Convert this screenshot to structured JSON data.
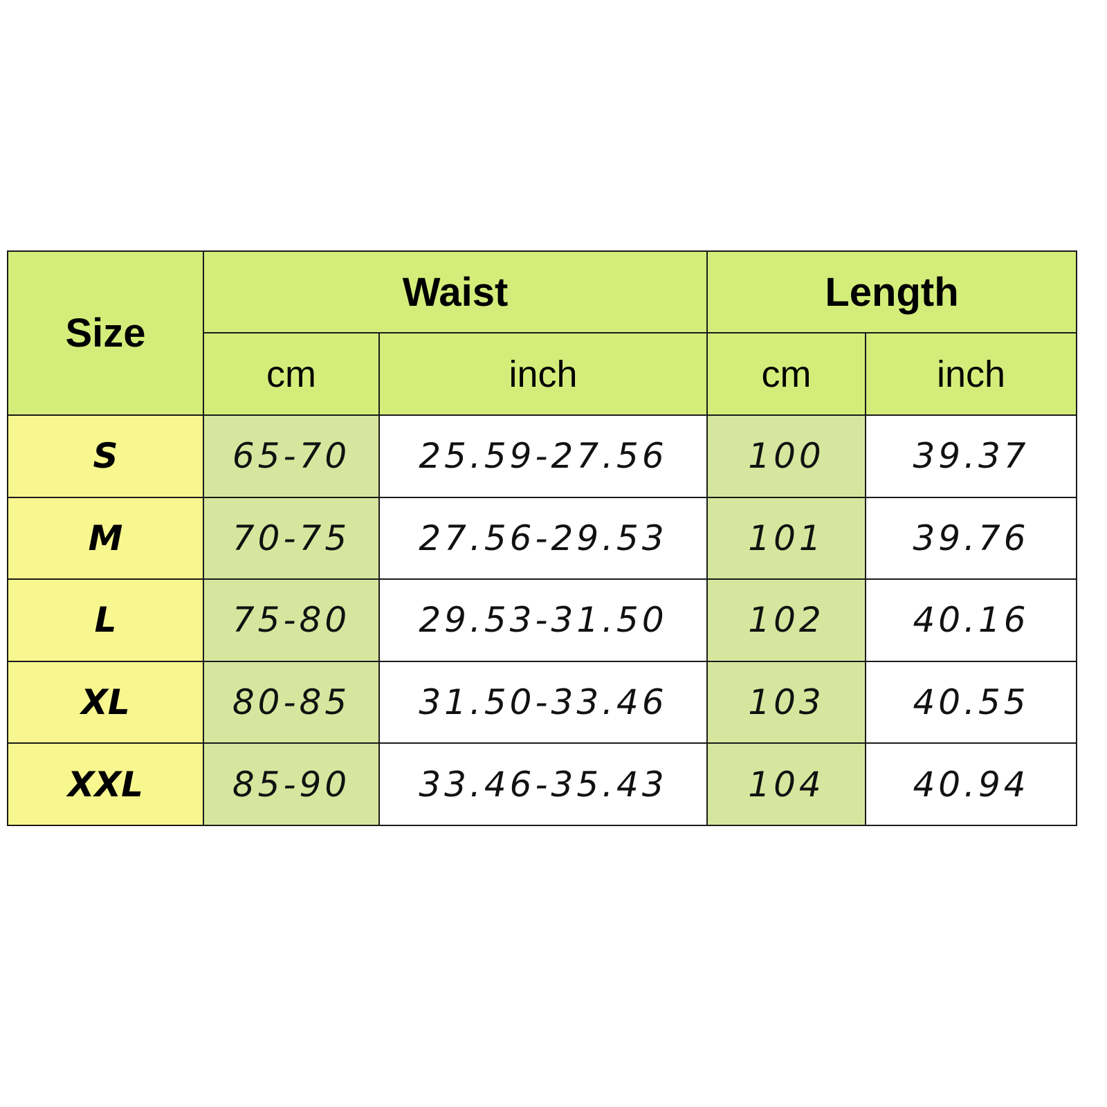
{
  "table": {
    "header": {
      "size": "Size",
      "waist": "Waist",
      "length": "Length",
      "units": [
        "cm",
        "inch",
        "cm",
        "inch"
      ]
    },
    "rows": [
      {
        "size": "S",
        "waist_cm": "65-70",
        "waist_inch": "25.59-27.56",
        "length_cm": "100",
        "length_inch": "39.37"
      },
      {
        "size": "M",
        "waist_cm": "70-75",
        "waist_inch": "27.56-29.53",
        "length_cm": "101",
        "length_inch": "39.76"
      },
      {
        "size": "L",
        "waist_cm": "75-80",
        "waist_inch": "29.53-31.50",
        "length_cm": "102",
        "length_inch": "40.16"
      },
      {
        "size": "XL",
        "waist_cm": "80-85",
        "waist_inch": "31.50-33.46",
        "length_cm": "103",
        "length_inch": "40.55"
      },
      {
        "size": "XXL",
        "waist_cm": "85-90",
        "waist_inch": "33.46-35.43",
        "length_cm": "104",
        "length_inch": "40.94"
      }
    ]
  },
  "colors": {
    "header_bg": "#d4ed7a",
    "size_column_bg": "#f8f68e",
    "cm_column_bg": "#d7e69e",
    "inch_column_bg": "#ffffff",
    "border": "#1a1a1a"
  }
}
